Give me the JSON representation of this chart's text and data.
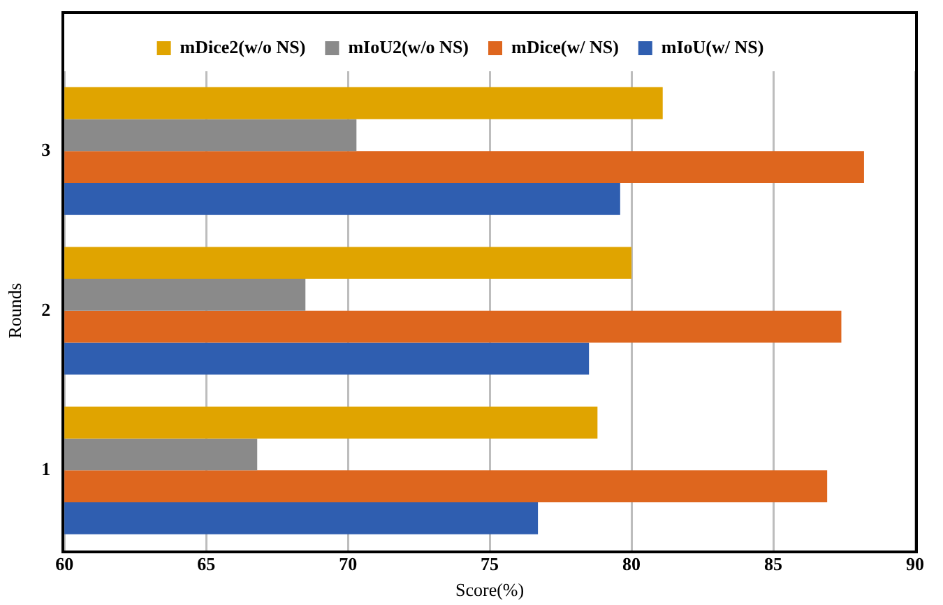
{
  "chart_data": {
    "type": "bar",
    "orientation": "horizontal",
    "xlabel": "Score(%)",
    "ylabel": "Rounds",
    "categories": [
      "3",
      "2",
      "1"
    ],
    "series": [
      {
        "name": "mDice2(w/o NS)",
        "color": "#e0a400",
        "values": [
          81.1,
          80.0,
          78.8
        ]
      },
      {
        "name": "mIoU2(w/o NS)",
        "color": "#8a8a8a",
        "values": [
          70.3,
          68.5,
          66.8
        ]
      },
      {
        "name": "mDice(w/ NS)",
        "color": "#de661e",
        "values": [
          88.2,
          87.4,
          86.9
        ]
      },
      {
        "name": "mIoU(w/ NS)",
        "color": "#2f5eb0",
        "values": [
          79.6,
          78.5,
          76.7
        ]
      }
    ],
    "xlim": [
      60,
      90
    ],
    "xticks": [
      60,
      65,
      70,
      75,
      80,
      85,
      90
    ],
    "grid": "x",
    "legend": "top"
  }
}
